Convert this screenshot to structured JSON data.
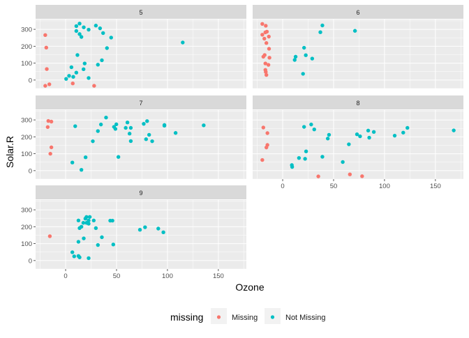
{
  "chart_data": {
    "type": "scatter",
    "xlabel": "Ozone",
    "ylabel": "Solar.R",
    "xlim": [
      -29.5,
      177.5
    ],
    "ylim": [
      -50,
      358
    ],
    "x_ticks": [
      0,
      50,
      100,
      150
    ],
    "y_ticks": [
      0,
      100,
      200,
      300
    ],
    "grid": true,
    "legend": {
      "title": "missing",
      "placement": "bottom",
      "entries": [
        {
          "label": "Missing",
          "color": "#F8766D"
        },
        {
          "label": "Not Missing",
          "color": "#00BFC4"
        }
      ]
    },
    "facets": [
      {
        "label": "5",
        "missing": [
          [
            -20,
            266
          ],
          [
            -19,
            192
          ],
          [
            -18.5,
            65
          ],
          [
            -20,
            -34
          ],
          [
            -16,
            -25
          ],
          [
            7,
            -20
          ],
          [
            28,
            -34
          ]
        ],
        "not_missing": [
          [
            10.5,
            319
          ],
          [
            13.7,
            334
          ],
          [
            17.8,
            312
          ],
          [
            22.6,
            298
          ],
          [
            10.5,
            290
          ],
          [
            13.7,
            272
          ],
          [
            15.5,
            255
          ],
          [
            29.7,
            322
          ],
          [
            33.8,
            306
          ],
          [
            36.8,
            278
          ],
          [
            44.7,
            251
          ],
          [
            40.6,
            189
          ],
          [
            115,
            222
          ],
          [
            11.6,
            148
          ],
          [
            18.7,
            98
          ],
          [
            35.6,
            117
          ],
          [
            31.7,
            91
          ],
          [
            5.7,
            76
          ],
          [
            17.6,
            64
          ],
          [
            10.5,
            44
          ],
          [
            3.4,
            25
          ],
          [
            7.5,
            19
          ],
          [
            0.5,
            7
          ],
          [
            22.6,
            12
          ]
        ]
      },
      {
        "label": "6",
        "missing": [
          [
            -20,
            332
          ],
          [
            -16.6,
            321
          ],
          [
            -15.5,
            286
          ],
          [
            -17,
            282
          ],
          [
            -20,
            268
          ],
          [
            -13.6,
            257
          ],
          [
            -18,
            245
          ],
          [
            -16,
            219
          ],
          [
            -13.4,
            185
          ],
          [
            -17.7,
            148
          ],
          [
            -19,
            138
          ],
          [
            -13,
            132
          ],
          [
            -17,
            98
          ],
          [
            -14,
            90
          ],
          [
            -17,
            60
          ],
          [
            -16.6,
            48
          ],
          [
            -16,
            30
          ]
        ],
        "not_missing": [
          [
            39,
            323
          ],
          [
            37,
            283
          ],
          [
            71,
            291
          ],
          [
            21,
            191
          ],
          [
            22.7,
            147
          ],
          [
            12.7,
            138
          ],
          [
            11.8,
            119
          ],
          [
            29,
            127
          ],
          [
            20,
            37
          ]
        ]
      },
      {
        "label": "7",
        "missing": [
          [
            -17,
            294
          ],
          [
            -14,
            290
          ],
          [
            -17.6,
            258
          ],
          [
            -14,
            138
          ],
          [
            -15,
            100
          ]
        ],
        "not_missing": [
          [
            9.4,
            263
          ],
          [
            39.7,
            314
          ],
          [
            34.7,
            273
          ],
          [
            31.7,
            234
          ],
          [
            26.7,
            174
          ],
          [
            19.6,
            79
          ],
          [
            6.6,
            48
          ],
          [
            15.5,
            5
          ],
          [
            49.8,
            274
          ],
          [
            47.5,
            259
          ],
          [
            48.9,
            247
          ],
          [
            51.8,
            81
          ],
          [
            59,
            253
          ],
          [
            60.7,
            285
          ],
          [
            64,
            253
          ],
          [
            62.8,
            219
          ],
          [
            64,
            175
          ],
          [
            76.7,
            277
          ],
          [
            80,
            293
          ],
          [
            82,
            212
          ],
          [
            79,
            186
          ],
          [
            85,
            174
          ],
          [
            97,
            270
          ],
          [
            97,
            266
          ],
          [
            108,
            223
          ],
          [
            135.6,
            268
          ]
        ]
      },
      {
        "label": "8",
        "missing": [
          [
            -19,
            255
          ],
          [
            -15,
            222
          ],
          [
            -15,
            152
          ],
          [
            -16,
            137
          ],
          [
            -20,
            63
          ],
          [
            35,
            -34
          ],
          [
            66,
            -22
          ],
          [
            78,
            -33
          ]
        ],
        "not_missing": [
          [
            21,
            259
          ],
          [
            28,
            273
          ],
          [
            31,
            244
          ],
          [
            45.5,
            212
          ],
          [
            44.3,
            190
          ],
          [
            23,
            114
          ],
          [
            16,
            75
          ],
          [
            22,
            70
          ],
          [
            39,
            82
          ],
          [
            9,
            33
          ],
          [
            9.3,
            22
          ],
          [
            59,
            51
          ],
          [
            65,
            156
          ],
          [
            73,
            215
          ],
          [
            76,
            203
          ],
          [
            84,
            237
          ],
          [
            89.5,
            229
          ],
          [
            85,
            195
          ],
          [
            110,
            207
          ],
          [
            118.4,
            225
          ],
          [
            122.5,
            253
          ],
          [
            168,
            238
          ]
        ]
      },
      {
        "label": "9",
        "missing": [
          [
            -15.5,
            144
          ]
        ],
        "not_missing": [
          [
            12.6,
            237
          ],
          [
            20.5,
            258
          ],
          [
            23.7,
            258
          ],
          [
            19.4,
            248
          ],
          [
            22.6,
            237
          ],
          [
            27.6,
            237
          ],
          [
            17.4,
            223
          ],
          [
            20.5,
            223
          ],
          [
            22.6,
            218
          ],
          [
            13.7,
            192
          ],
          [
            15.5,
            200
          ],
          [
            29.7,
            192
          ],
          [
            43.8,
            236
          ],
          [
            46,
            236
          ],
          [
            17.8,
            131
          ],
          [
            35.6,
            138
          ],
          [
            12.6,
            111
          ],
          [
            31.7,
            92
          ],
          [
            46.8,
            95
          ],
          [
            6.6,
            49
          ],
          [
            8.4,
            25
          ],
          [
            12.6,
            27
          ],
          [
            13.7,
            19
          ],
          [
            22.6,
            14
          ],
          [
            73,
            182
          ],
          [
            78,
            197
          ],
          [
            91,
            189
          ],
          [
            96,
            167
          ]
        ]
      }
    ]
  }
}
